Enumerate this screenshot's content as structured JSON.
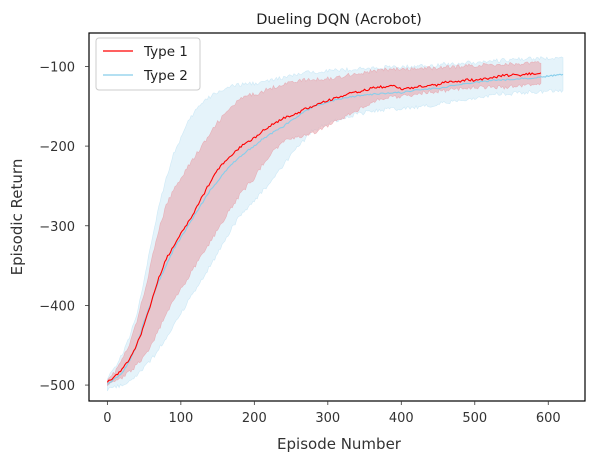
{
  "chart_data": {
    "type": "line",
    "title": "Dueling DQN (Acrobot)",
    "xlabel": "Episode Number",
    "ylabel": "Episodic Return",
    "xlim": [
      -25,
      650
    ],
    "ylim": [
      -520,
      -58
    ],
    "xticks": [
      0,
      100,
      200,
      300,
      400,
      500,
      600
    ],
    "xtick_labels": [
      "0",
      "100",
      "200",
      "300",
      "400",
      "500",
      "600"
    ],
    "yticks": [
      -500,
      -400,
      -300,
      -200,
      -100
    ],
    "ytick_labels": [
      "−500",
      "−400",
      "−300",
      "−200",
      "−100"
    ],
    "grid": false,
    "legend_position": "top-left",
    "series": [
      {
        "name": "Type 1",
        "color": "#ff0000",
        "band_color": "#e8a0a8",
        "x": [
          0,
          10,
          20,
          30,
          40,
          50,
          60,
          70,
          80,
          90,
          100,
          110,
          120,
          130,
          140,
          150,
          160,
          170,
          180,
          190,
          200,
          210,
          220,
          230,
          240,
          250,
          260,
          270,
          280,
          290,
          300,
          310,
          320,
          330,
          340,
          350,
          360,
          370,
          380,
          390,
          400,
          410,
          420,
          430,
          440,
          450,
          460,
          470,
          480,
          490,
          500,
          510,
          520,
          530,
          540,
          550,
          560,
          570,
          580,
          590
        ],
        "y": [
          -495,
          -490,
          -480,
          -468,
          -450,
          -425,
          -395,
          -365,
          -342,
          -325,
          -310,
          -295,
          -280,
          -262,
          -245,
          -230,
          -220,
          -210,
          -202,
          -195,
          -190,
          -182,
          -175,
          -170,
          -165,
          -162,
          -158,
          -153,
          -150,
          -146,
          -143,
          -140,
          -137,
          -134,
          -132,
          -130,
          -127,
          -126,
          -125,
          -124,
          -128,
          -127,
          -126,
          -125,
          -124,
          -123,
          -120,
          -120,
          -119,
          -116,
          -118,
          -116,
          -115,
          -113,
          -111,
          -111,
          -111,
          -110,
          -109,
          -108
        ],
        "lower": [
          -498,
          -496,
          -490,
          -483,
          -475,
          -465,
          -450,
          -430,
          -410,
          -395,
          -380,
          -365,
          -350,
          -335,
          -320,
          -305,
          -290,
          -275,
          -262,
          -250,
          -240,
          -225,
          -212,
          -202,
          -195,
          -190,
          -188,
          -186,
          -183,
          -180,
          -175,
          -170,
          -165,
          -160,
          -155,
          -150,
          -145,
          -142,
          -140,
          -138,
          -138,
          -136,
          -135,
          -133,
          -132,
          -131,
          -130,
          -129,
          -128,
          -127,
          -126,
          -126,
          -126,
          -126,
          -126,
          -125,
          -124,
          -123,
          -122,
          -121
        ],
        "upper": [
          -492,
          -484,
          -468,
          -450,
          -420,
          -385,
          -345,
          -305,
          -275,
          -255,
          -240,
          -225,
          -212,
          -198,
          -185,
          -170,
          -160,
          -150,
          -142,
          -137,
          -135,
          -132,
          -128,
          -125,
          -122,
          -120,
          -118,
          -117,
          -117,
          -116,
          -115,
          -115,
          -112,
          -110,
          -109,
          -108,
          -106,
          -105,
          -104,
          -103,
          -104,
          -104,
          -103,
          -103,
          -102,
          -102,
          -101,
          -101,
          -100,
          -99,
          -99,
          -98,
          -98,
          -98,
          -97,
          -97,
          -97,
          -96,
          -96,
          -96
        ]
      },
      {
        "name": "Type 2",
        "color": "#87ceeb",
        "band_color": "#bfe2f3",
        "x": [
          0,
          10,
          20,
          30,
          40,
          50,
          60,
          70,
          80,
          90,
          100,
          110,
          120,
          130,
          140,
          150,
          160,
          170,
          180,
          190,
          200,
          210,
          220,
          230,
          240,
          250,
          260,
          270,
          280,
          290,
          300,
          310,
          320,
          330,
          340,
          350,
          360,
          370,
          380,
          390,
          400,
          410,
          420,
          430,
          440,
          450,
          460,
          470,
          480,
          490,
          500,
          510,
          520,
          530,
          540,
          550,
          560,
          570,
          580,
          590,
          600,
          610,
          620
        ],
        "y": [
          -498,
          -492,
          -485,
          -470,
          -450,
          -420,
          -395,
          -370,
          -350,
          -330,
          -315,
          -300,
          -285,
          -270,
          -255,
          -245,
          -232,
          -222,
          -214,
          -206,
          -200,
          -192,
          -186,
          -180,
          -175,
          -168,
          -162,
          -156,
          -150,
          -148,
          -145,
          -142,
          -140,
          -138,
          -137,
          -136,
          -135,
          -134,
          -134,
          -133,
          -133,
          -131,
          -130,
          -129,
          -128,
          -127,
          -126,
          -124,
          -123,
          -121,
          -120,
          -119,
          -118,
          -117,
          -117,
          -116,
          -115,
          -115,
          -114,
          -113,
          -112,
          -111,
          -110
        ],
        "lower": [
          -505,
          -503,
          -500,
          -495,
          -488,
          -478,
          -468,
          -455,
          -440,
          -425,
          -410,
          -395,
          -380,
          -365,
          -350,
          -335,
          -318,
          -302,
          -288,
          -278,
          -268,
          -258,
          -248,
          -236,
          -224,
          -212,
          -200,
          -190,
          -180,
          -176,
          -172,
          -168,
          -165,
          -162,
          -160,
          -158,
          -156,
          -155,
          -154,
          -153,
          -153,
          -152,
          -151,
          -150,
          -149,
          -147,
          -146,
          -144,
          -143,
          -142,
          -140,
          -138,
          -136,
          -135,
          -134,
          -134,
          -133,
          -133,
          -132,
          -132,
          -131,
          -131,
          -130
        ],
        "upper": [
          -490,
          -478,
          -462,
          -440,
          -410,
          -370,
          -320,
          -275,
          -240,
          -210,
          -190,
          -170,
          -155,
          -145,
          -138,
          -132,
          -128,
          -125,
          -123,
          -122,
          -121,
          -120,
          -118,
          -116,
          -114,
          -112,
          -110,
          -108,
          -107,
          -106,
          -105,
          -105,
          -104,
          -104,
          -103,
          -103,
          -102,
          -102,
          -101,
          -101,
          -101,
          -100,
          -100,
          -99,
          -99,
          -98,
          -97,
          -97,
          -96,
          -95,
          -95,
          -94,
          -93,
          -93,
          -92,
          -92,
          -91,
          -91,
          -90,
          -90,
          -90,
          -89,
          -89
        ]
      }
    ]
  }
}
